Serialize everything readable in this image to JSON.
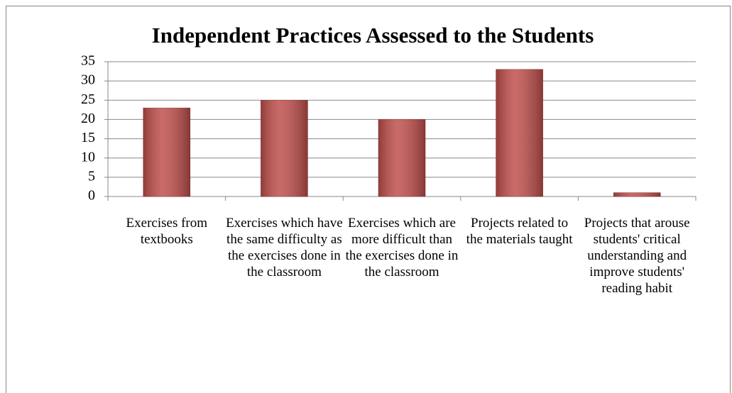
{
  "chart_data": {
    "type": "bar",
    "title": "Independent Practices Assessed to the Students",
    "categories": [
      "Exercises from textbooks",
      "Exercises which have the same difficulty as the exercises done in the classroom",
      "Exercises which are more difficult than the exercises done in the classroom",
      "Projects related to the materials taught",
      "Projects that arouse students' critical understanding and improve students' reading habit"
    ],
    "values": [
      23,
      25,
      20,
      33,
      1
    ],
    "color": "#c0504d",
    "ylim": [
      0,
      35
    ],
    "yticks": [
      0,
      5,
      10,
      15,
      20,
      25,
      30,
      35
    ],
    "grid": true
  }
}
